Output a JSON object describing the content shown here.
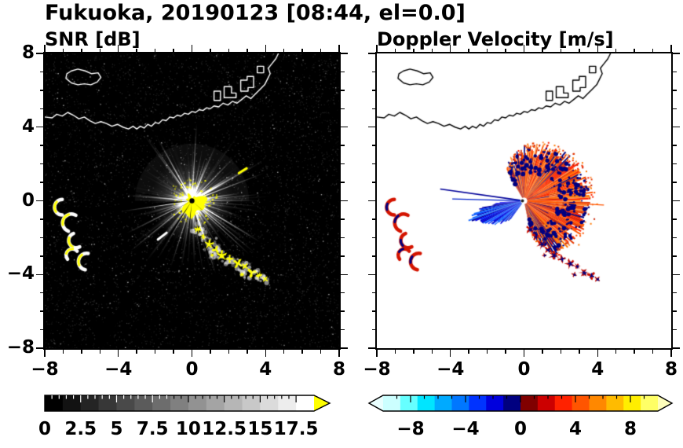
{
  "title": "Fukuoka, 20190123 [08:44, el=0.0]",
  "panels": {
    "snr": {
      "title": "SNR [dB]",
      "variable": "SNR",
      "units": "dB"
    },
    "doppler": {
      "title": "Doppler Velocity [m/s]",
      "variable": "Doppler Velocity",
      "units": "m/s"
    }
  },
  "axes": {
    "x_range": [
      -8,
      8
    ],
    "y_range": [
      -8,
      8
    ],
    "minor_tick_step": 1,
    "x_tick_values": [
      -8,
      -4,
      0,
      4,
      8
    ],
    "x_tick_labels": [
      "−8",
      "−4",
      "0",
      "4",
      "8"
    ],
    "y_tick_values": [
      8,
      4,
      0,
      -4,
      -8
    ],
    "y_tick_labels": [
      "8",
      "4",
      "0",
      "−4",
      "−8"
    ]
  },
  "colorbars": {
    "snr": {
      "min": 0,
      "max": 18.75,
      "bins": 15,
      "minor_step": 0.5,
      "tick_values": [
        0,
        2.5,
        5,
        7.5,
        10,
        12.5,
        15,
        17.5
      ],
      "tick_labels": [
        "0",
        "2.5",
        "5",
        "7.5",
        "10",
        "12.5",
        "15",
        "17.5"
      ],
      "start_color": "#000000",
      "end_color": "#ffffff",
      "over_color": "#ffff00"
    },
    "doppler": {
      "min": -10,
      "max": 10,
      "minor_step": 1,
      "tick_values": [
        -8,
        -4,
        0,
        4,
        8
      ],
      "tick_labels": [
        "−8",
        "−4",
        "0",
        "4",
        "8"
      ],
      "colors": [
        "#ccffff",
        "#66ffff",
        "#00e5ff",
        "#00aaff",
        "#0077ff",
        "#0033ff",
        "#0000dd",
        "#000080",
        "#800000",
        "#cc0000",
        "#ff2200",
        "#ff5500",
        "#ff8800",
        "#ffbb00",
        "#ffee00",
        "#ffff66"
      ],
      "under_color": "#eaffff",
      "over_color": "#ffffbb"
    }
  },
  "chart_data": {
    "type": "radar_ppi",
    "site": "Fukuoka",
    "date": "20190123",
    "time": "08:44",
    "elevation_deg": 0.0,
    "radar_position": [
      0,
      0
    ],
    "coastline": {
      "mainland": [
        [
          -8,
          4.55
        ],
        [
          -7.6,
          4.5
        ],
        [
          -7.35,
          4.7
        ],
        [
          -7.05,
          4.6
        ],
        [
          -6.75,
          4.8
        ],
        [
          -6.45,
          4.65
        ],
        [
          -6.15,
          4.45
        ],
        [
          -5.85,
          4.55
        ],
        [
          -5.55,
          4.35
        ],
        [
          -5.25,
          4.2
        ],
        [
          -4.95,
          4.3
        ],
        [
          -4.65,
          4.2
        ],
        [
          -4.35,
          4.05
        ],
        [
          -4.05,
          4.15
        ],
        [
          -3.75,
          4.0
        ],
        [
          -3.45,
          3.9
        ],
        [
          -3.2,
          4.05
        ],
        [
          -3.0,
          3.9
        ],
        [
          -2.8,
          4.05
        ],
        [
          -2.6,
          3.95
        ],
        [
          -2.4,
          4.15
        ],
        [
          -2.2,
          4.05
        ],
        [
          -2.0,
          4.25
        ],
        [
          -1.8,
          4.2
        ],
        [
          -1.6,
          4.4
        ],
        [
          -1.4,
          4.35
        ],
        [
          -1.2,
          4.55
        ],
        [
          -1.0,
          4.5
        ],
        [
          -0.8,
          4.65
        ],
        [
          -0.6,
          4.6
        ],
        [
          -0.4,
          4.75
        ],
        [
          -0.2,
          4.7
        ],
        [
          0.0,
          4.85
        ],
        [
          0.2,
          4.8
        ],
        [
          0.4,
          4.95
        ],
        [
          0.6,
          4.9
        ],
        [
          0.8,
          5.05
        ],
        [
          1.0,
          5.0
        ],
        [
          1.2,
          5.15
        ],
        [
          1.45,
          5.1
        ],
        [
          1.7,
          5.3
        ],
        [
          1.95,
          5.2
        ],
        [
          2.2,
          5.4
        ],
        [
          2.45,
          5.3
        ],
        [
          2.7,
          5.5
        ],
        [
          2.95,
          5.7
        ],
        [
          3.2,
          5.55
        ],
        [
          3.45,
          5.8
        ],
        [
          3.7,
          6.05
        ],
        [
          3.95,
          6.3
        ],
        [
          4.1,
          6.6
        ],
        [
          4.25,
          6.9
        ],
        [
          4.15,
          7.2
        ],
        [
          4.35,
          7.45
        ],
        [
          4.55,
          7.7
        ],
        [
          4.7,
          8.0
        ]
      ],
      "island": [
        [
          -6.85,
          6.65
        ],
        [
          -6.55,
          6.4
        ],
        [
          -6.2,
          6.3
        ],
        [
          -5.85,
          6.35
        ],
        [
          -5.5,
          6.3
        ],
        [
          -5.15,
          6.45
        ],
        [
          -4.95,
          6.7
        ],
        [
          -5.1,
          6.95
        ],
        [
          -5.45,
          6.9
        ],
        [
          -5.8,
          7.05
        ],
        [
          -6.2,
          7.15
        ],
        [
          -6.55,
          7.05
        ],
        [
          -6.8,
          6.9
        ],
        [
          -6.85,
          6.65
        ]
      ],
      "blocks": [
        [
          [
            1.2,
            5.45
          ],
          [
            1.2,
            5.95
          ],
          [
            1.55,
            5.95
          ],
          [
            1.55,
            5.45
          ]
        ],
        [
          [
            1.75,
            5.6
          ],
          [
            1.75,
            6.2
          ],
          [
            2.15,
            6.2
          ],
          [
            2.15,
            5.85
          ],
          [
            2.4,
            5.85
          ],
          [
            2.4,
            5.6
          ]
        ],
        [
          [
            2.65,
            5.95
          ],
          [
            2.65,
            6.55
          ],
          [
            3.0,
            6.55
          ],
          [
            3.0,
            6.75
          ],
          [
            3.35,
            6.75
          ],
          [
            3.35,
            6.15
          ],
          [
            3.05,
            6.15
          ],
          [
            3.05,
            5.95
          ]
        ],
        [
          [
            3.55,
            6.95
          ],
          [
            3.55,
            7.3
          ],
          [
            3.9,
            7.3
          ],
          [
            3.9,
            6.95
          ]
        ]
      ]
    },
    "features": {
      "echo_chain": [
        [
          0.32,
          -1.55,
          0.26
        ],
        [
          0.62,
          -1.95,
          0.2
        ],
        [
          0.95,
          -2.35,
          0.3
        ],
        [
          1.3,
          -2.65,
          0.22
        ],
        [
          1.62,
          -2.95,
          0.32
        ],
        [
          2.05,
          -3.15,
          0.24
        ],
        [
          2.5,
          -3.4,
          0.3
        ],
        [
          2.88,
          -3.55,
          0.2
        ],
        [
          3.25,
          -3.9,
          0.28
        ],
        [
          3.65,
          -4.05,
          0.24
        ],
        [
          3.98,
          -4.25,
          0.18
        ],
        [
          2.72,
          -4.0,
          0.16
        ],
        [
          1.1,
          -2.95,
          0.13
        ]
      ],
      "left_arcs": [
        [
          -7.05,
          -0.35,
          0.42,
          90,
          270
        ],
        [
          -6.55,
          -1.2,
          0.48,
          60,
          250
        ],
        [
          -6.3,
          -2.15,
          0.4,
          110,
          300
        ],
        [
          -6.5,
          -2.95,
          0.34,
          40,
          220
        ],
        [
          -5.72,
          -3.3,
          0.45,
          80,
          260
        ]
      ],
      "snr_dashes": [
        {
          "x": -1.85,
          "y": -2.1,
          "ang": 38,
          "len": 0.6,
          "color": "#ffffff",
          "w": 3
        },
        {
          "x": 2.55,
          "y": 1.5,
          "ang": 32,
          "len": 0.5,
          "color": "#ffff00",
          "w": 3
        }
      ]
    },
    "render": {
      "seed_snr": 20190123,
      "seed_doppler": 844,
      "snr_core_color": "#ffff00",
      "snr_shadow_wedges": [
        [
          186,
          2.2
        ],
        [
          208,
          0.7
        ],
        [
          237,
          1.6
        ],
        [
          264,
          1.1
        ],
        [
          172,
          0.5
        ],
        [
          318,
          0.5
        ]
      ],
      "fan_radius": [
        [
          -78,
          1.6
        ],
        [
          -60,
          3.0
        ],
        [
          -40,
          3.2
        ],
        [
          -20,
          3.3
        ],
        [
          0,
          3.4
        ],
        [
          25,
          3.3
        ],
        [
          45,
          3.15
        ],
        [
          70,
          2.9
        ],
        [
          90,
          2.6
        ],
        [
          105,
          2.2
        ],
        [
          120,
          1.7
        ]
      ],
      "blue_radius": [
        [
          184,
          1.2
        ],
        [
          192,
          2.6
        ],
        [
          200,
          3.0
        ],
        [
          210,
          2.4
        ],
        [
          222,
          1.7
        ],
        [
          234,
          1.0
        ]
      ],
      "doppler_pos_colors": [
        "#ff2200",
        "#ff5500",
        "#e63900",
        "#ff7700",
        "#cc2200",
        "#ff9444"
      ],
      "doppler_neg_colors": [
        "#0000ee",
        "#0033ff",
        "#0055ff",
        "#1e6fff",
        "#0000bb"
      ],
      "navy": "#000080",
      "doppler_rays": [
        {
          "ang": 172,
          "r": 4.6,
          "w": 1.6,
          "color": "#000099"
        },
        {
          "ang": 178.5,
          "r": 3.9,
          "w": 1.2,
          "color": "#0022cc"
        },
        {
          "ang": -3,
          "r": 4.35,
          "w": 1.3,
          "color": "#ff5500"
        }
      ]
    }
  }
}
